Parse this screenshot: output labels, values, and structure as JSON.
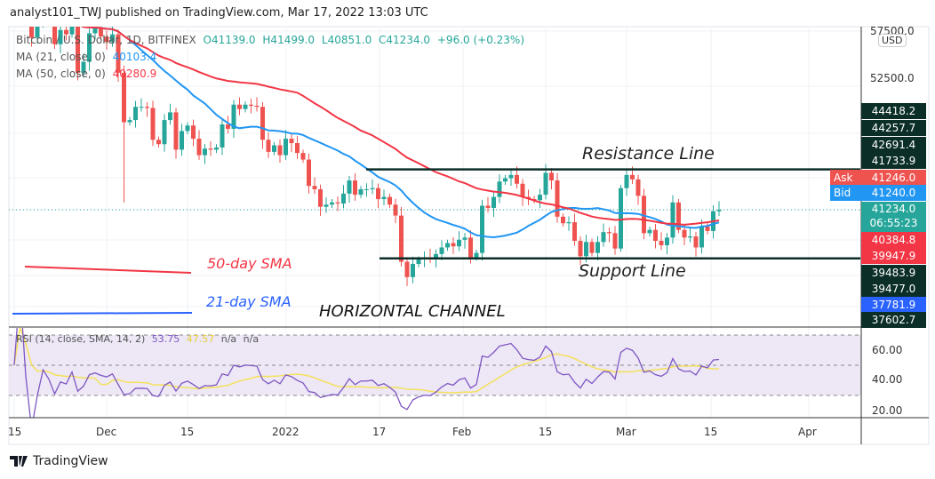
{
  "header": {
    "title": "analyst101_TWJ published on TradingView.com, Mar 17, 2022 13:03 UTC"
  },
  "legend": {
    "symbol": "Bitcoin / U.S. Dollar, 1D, BITFINEX",
    "open": "O41139.0",
    "high": "H41499.0",
    "low": "L40851.0",
    "close": "C41234.0",
    "change": "+96.0 (+0.23%)",
    "ma21_label": "MA (21, close, 0)",
    "ma21_value": "40103.4",
    "ma50_label": "MA (50, close, 0)",
    "ma50_value": "40280.9",
    "rsi_label": "RSI (14, close, SMA, 14, 2)",
    "rsi_value": "53.75",
    "rsi_sma_value": "47.57",
    "rsi_na1": "n/a",
    "rsi_na2": "n/a"
  },
  "annotations": {
    "resistance": "Resistance Line",
    "support": "Support Line",
    "channel": "HORIZONTAL CHANNEL",
    "sma50": "50-day SMA",
    "sma21": "21-day SMA",
    "resistance_price": 44900,
    "support_price": 36800
  },
  "price_axis": {
    "currency": "USD",
    "ticks": [
      "57500.0",
      "52500.0"
    ],
    "labels": [
      {
        "text": "44418.2",
        "color": "#0b2e28"
      },
      {
        "text": "44257.7",
        "color": "#0b2e28"
      },
      {
        "text": "42691.4",
        "color": "#0b2e28"
      },
      {
        "text": "41733.9",
        "color": "#0b2e28"
      },
      {
        "tag": "Ask",
        "text": "41246.0",
        "color": "#ef5350"
      },
      {
        "tag": "Bid",
        "text": "41240.0",
        "color": "#2196f3"
      },
      {
        "text": "41234.0",
        "sub": "06:55:23",
        "color": "#26a69a"
      },
      {
        "text": "40384.8",
        "color": "#f23645"
      },
      {
        "text": "39947.9",
        "color": "#f23645"
      },
      {
        "text": "39483.9",
        "color": "#0b2e28"
      },
      {
        "text": "39477.0",
        "color": "#0b2e28"
      },
      {
        "text": "37781.9",
        "color": "#2962ff"
      },
      {
        "text": "37602.7",
        "color": "#0b2e28"
      }
    ],
    "rsi_ticks": [
      "60.00",
      "40.00",
      "20.00"
    ]
  },
  "time_axis": {
    "ticks": [
      "15",
      "Dec",
      "15",
      "2022",
      "17",
      "Feb",
      "15",
      "Mar",
      "15",
      "Apr"
    ]
  },
  "colors": {
    "up": "#26a69a",
    "down": "#ef5350",
    "ma21": "#2196f3",
    "ma50": "#f23645",
    "rsi": "#7e57c2",
    "rsi_sma": "#f5e15a",
    "rsi_band": "#ede7f6"
  },
  "footer": {
    "brand": "TradingView"
  },
  "chart_data": {
    "type": "candlestick",
    "title": "Bitcoin / U.S. Dollar, 1D, BITFINEX",
    "start_date": "2021-11-15",
    "end_date": "2022-03-17",
    "ylim": [
      30500,
      58000
    ],
    "close": [
      60100,
      60400,
      60000,
      56900,
      58100,
      59700,
      58700,
      56300,
      57600,
      57200,
      58900,
      53700,
      54700,
      57300,
      57800,
      57000,
      56500,
      57200,
      53700,
      49200,
      49400,
      50600,
      50600,
      50500,
      47600,
      47200,
      49400,
      50100,
      46700,
      48400,
      48900,
      47700,
      46200,
      46800,
      46700,
      46900,
      49000,
      48600,
      50800,
      50400,
      50800,
      50700,
      50600,
      47600,
      46500,
      47100,
      46200,
      47700,
      47300,
      46400,
      45800,
      43400,
      43100,
      41500,
      41700,
      41900,
      41800,
      42700,
      43900,
      42600,
      43100,
      43100,
      43200,
      42200,
      42400,
      41700,
      40700,
      36500,
      35100,
      36300,
      36700,
      36900,
      36800,
      37200,
      37800,
      38200,
      37900,
      38500,
      38700,
      36900,
      37300,
      41600,
      41400,
      42400,
      43800,
      44100,
      44400,
      43600,
      42400,
      42200,
      42100,
      42600,
      44600,
      43900,
      40600,
      40000,
      40100,
      38400,
      37000,
      38300,
      37300,
      38300,
      39200,
      39100,
      37700,
      43200,
      44400,
      44000,
      42500,
      39100,
      39400,
      38400,
      38000,
      38700,
      41900,
      39400,
      38700,
      38800,
      37800,
      39700,
      39300,
      41100,
      41234
    ],
    "series": [
      {
        "name": "MA (21, close, 0)",
        "period": 21
      },
      {
        "name": "MA (50, close, 0)",
        "period": 50
      }
    ],
    "rsi": {
      "period": 14,
      "sma_period": 14,
      "ylim": [
        15,
        75
      ],
      "bands": [
        70,
        50,
        30
      ]
    }
  }
}
